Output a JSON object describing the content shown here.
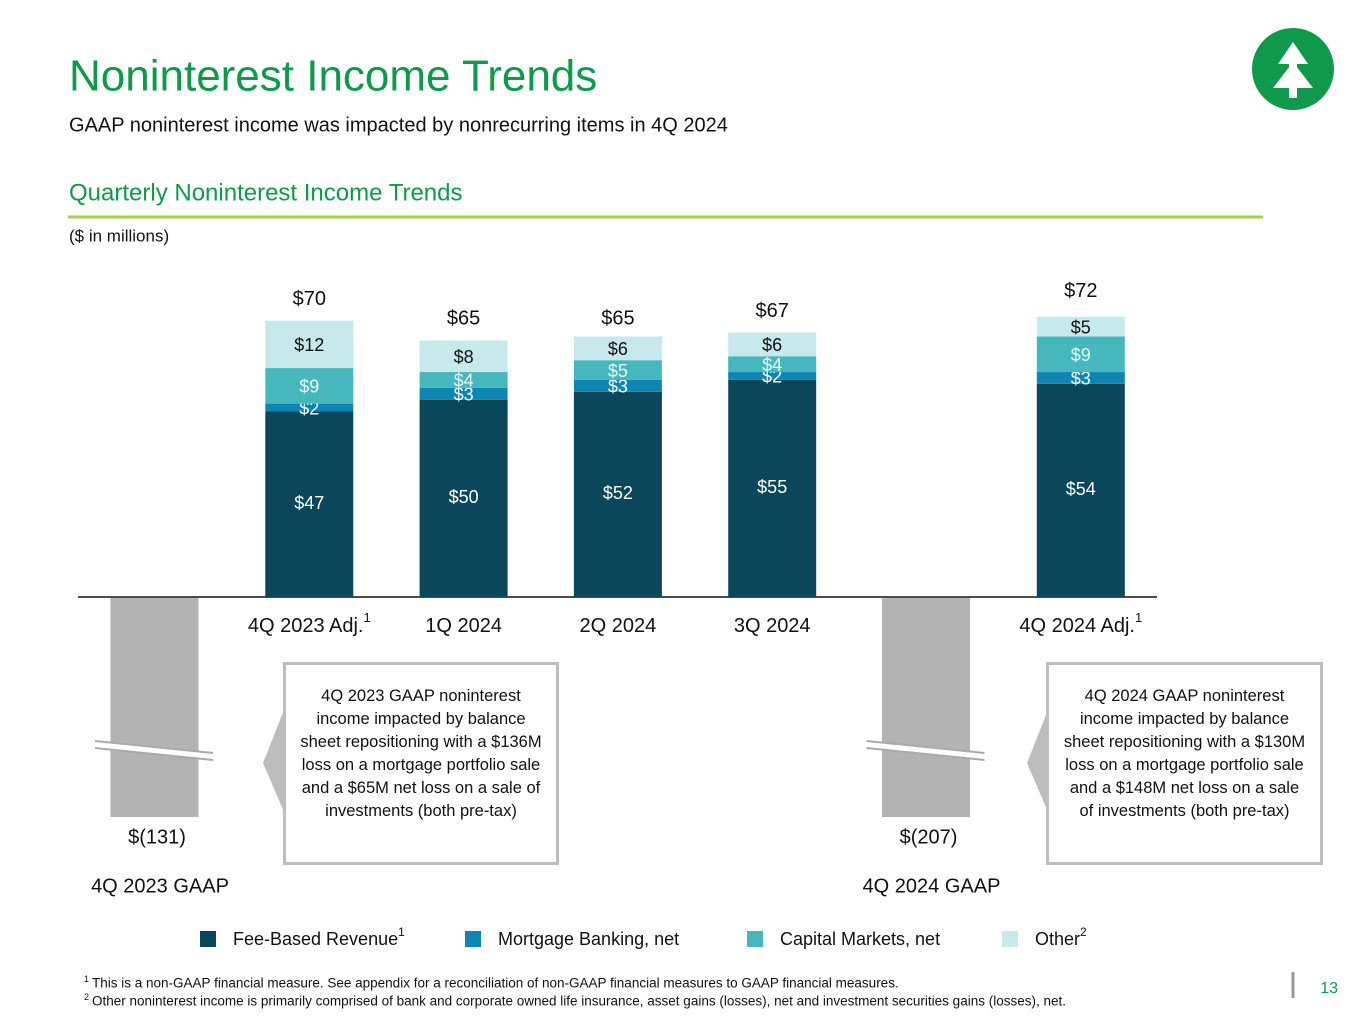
{
  "title": "Noninterest Income Trends",
  "subtitle": "GAAP noninterest income was impacted by nonrecurring items in 4Q 2024",
  "page_number": "13",
  "chart_data": {
    "type": "stacked_bar",
    "title": "Quarterly Noninterest Income Trends",
    "unit_label": "($ in millions)",
    "categories": [
      "4Q 2023 Adj.",
      "1Q 2024",
      "2Q 2024",
      "3Q 2024",
      "4Q 2024 Adj."
    ],
    "category_notes": [
      "1",
      null,
      null,
      null,
      "1"
    ],
    "ylim": [
      0,
      75
    ],
    "series": [
      {
        "name": "Fee-Based Revenue",
        "note": "1",
        "color": "#0b475a",
        "label_color": "#ffffff",
        "values": [
          47,
          50,
          52,
          55,
          54
        ],
        "value_labels": [
          "$47",
          "$50",
          "$52",
          "$55",
          "$54"
        ]
      },
      {
        "name": "Mortgage Banking, net",
        "color": "#0e86b4",
        "label_color": "#ffffff",
        "values": [
          2,
          3,
          3,
          2,
          3
        ],
        "value_labels": [
          "$2",
          "$3",
          "$3",
          "$2",
          "$3"
        ]
      },
      {
        "name": "Capital Markets, net",
        "color": "#45b7bd",
        "label_color": "#e8f7f8",
        "values": [
          9,
          4,
          5,
          4,
          9
        ],
        "value_labels": [
          "$9",
          "$4",
          "$5",
          "$4",
          "$9"
        ]
      },
      {
        "name": "Other",
        "note": "2",
        "color": "#c8e9ec",
        "label_color": "#111111",
        "values": [
          12,
          8,
          6,
          6,
          5
        ],
        "value_labels": [
          "$12",
          "$8",
          "$6",
          "$6",
          "$5"
        ]
      }
    ],
    "totals": [
      70,
      65,
      65,
      67,
      72
    ],
    "total_labels": [
      "$70",
      "$65",
      "$65",
      "$67",
      "$72"
    ],
    "gaap": {
      "labels": [
        "4Q 2023 GAAP",
        "4Q 2024 GAAP"
      ],
      "values": [
        -131,
        -207
      ],
      "value_labels": [
        "$(131)",
        "$(207)"
      ],
      "color": "#b3b3b3",
      "axis_break": true
    },
    "callouts": [
      "4Q 2023 GAAP noninterest income impacted by balance sheet repositioning with a $136M loss on a mortgage portfolio sale and a $65M net loss on a sale of investments (both pre-tax)",
      "4Q 2024 GAAP noninterest income impacted by balance sheet repositioning with a $130M loss on a mortgage portfolio sale and a $148M net loss on a sale of investments (both pre-tax)"
    ]
  },
  "footnotes": [
    {
      "mark": "1",
      "text": "This is a non-GAAP financial measure. See appendix for a reconciliation of non-GAAP financial measures to GAAP financial measures."
    },
    {
      "mark": "2",
      "text": "Other noninterest income is primarily comprised of bank and corporate owned life insurance, asset gains (losses), net and investment securities gains (losses), net."
    }
  ]
}
